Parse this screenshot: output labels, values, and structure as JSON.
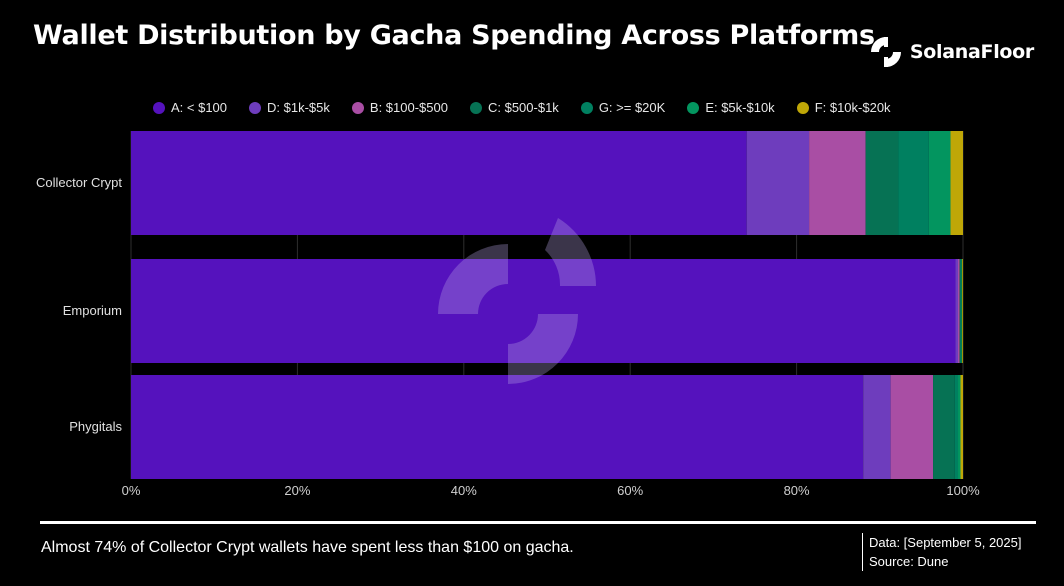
{
  "header": {
    "title": "Wallet Distribution by Gacha Spending Across Platforms",
    "brand": "SolanaFloor"
  },
  "footer": {
    "note": "Almost 74% of Collector Crypt wallets have spent less than $100 on gacha.",
    "data_date": "Data: [September 5, 2025]",
    "source": "Source: Dune"
  },
  "chart_data": {
    "type": "bar",
    "orientation": "horizontal",
    "stacked": true,
    "normalized_percent": true,
    "categories": [
      "Collector Crypt",
      "Emporium",
      "Phygitals"
    ],
    "series": [
      {
        "name": "A: < $100",
        "color": "#5512bd",
        "values": [
          74.0,
          99.1,
          88.0
        ]
      },
      {
        "name": "D: $1k-$5k",
        "color": "#6e3dbd",
        "values": [
          7.5,
          0.3,
          3.3
        ]
      },
      {
        "name": "B: $100-$500",
        "color": "#a94ea4",
        "values": [
          6.8,
          0.2,
          5.1
        ]
      },
      {
        "name": "C: $500-$1k",
        "color": "#067254",
        "values": [
          3.9,
          0.1,
          2.6
        ]
      },
      {
        "name": "G: >= $20K",
        "color": "#008060",
        "values": [
          3.7,
          0.1,
          0.4
        ]
      },
      {
        "name": "E: $5k-$10k",
        "color": "#03955f",
        "values": [
          2.6,
          0.1,
          0.3
        ]
      },
      {
        "name": "F: $10k-$20k",
        "color": "#bfa707",
        "values": [
          1.5,
          0.1,
          0.3
        ]
      }
    ],
    "x_ticks": [
      "0%",
      "20%",
      "40%",
      "60%",
      "80%",
      "100%"
    ],
    "xlim": [
      0,
      100
    ],
    "grid": true,
    "legend": "top"
  }
}
